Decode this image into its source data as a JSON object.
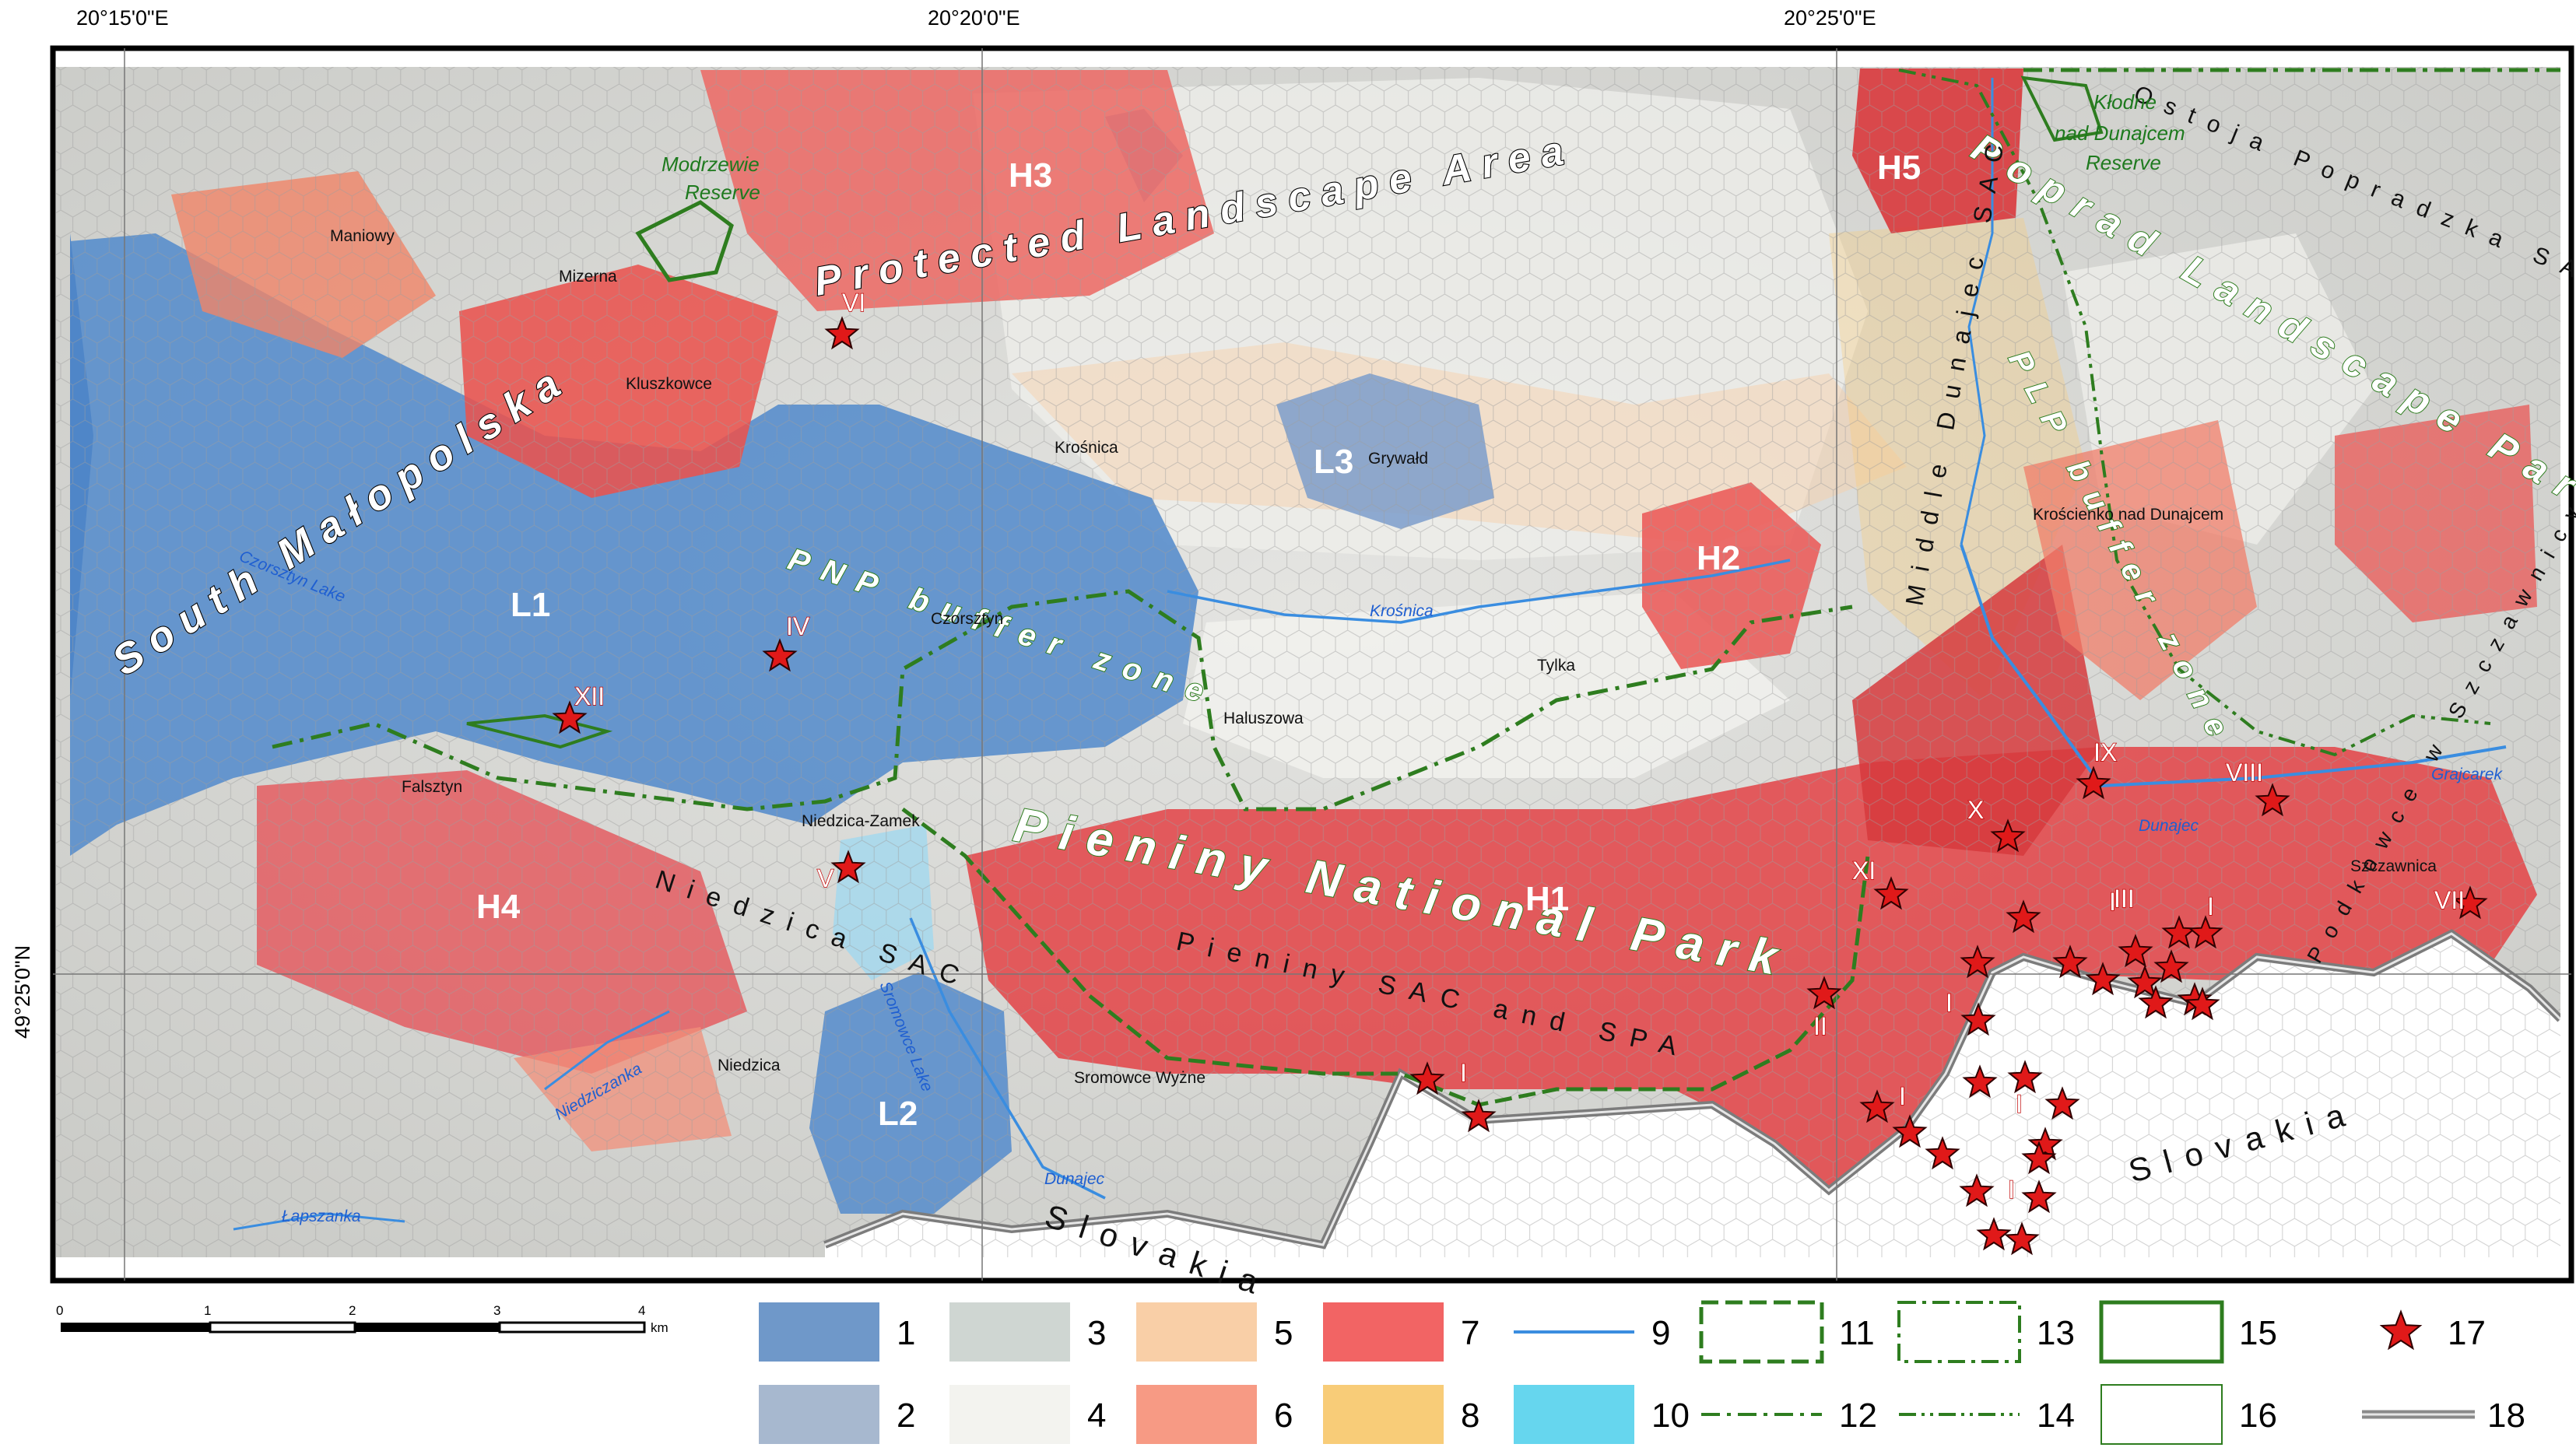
{
  "coordinates": {
    "top": [
      "20°15'0\"E",
      "20°20'0\"E",
      "20°25'0\"E"
    ],
    "left": "49°25'0\"N"
  },
  "areas": [
    {
      "id": "south-malopolska",
      "text": "South Małopolska"
    },
    {
      "id": "protected-landscape-area",
      "text": "Protected Landscape Area"
    },
    {
      "id": "pieniny-national-park",
      "text": "Pieniny National Park"
    },
    {
      "id": "poprad-landscape-park",
      "text": "Poprad Landscape Park"
    },
    {
      "id": "pieniny-sac-spa",
      "text": "Pieniny SAC and SPA"
    },
    {
      "id": "pnp-buffer-zone",
      "text": "PNP buffer zone"
    },
    {
      "id": "plp-buffer-zone",
      "text": "PLP buffer zone"
    },
    {
      "id": "niedzica-sac",
      "text": "Niedzica SAC"
    },
    {
      "id": "middle-dunajec-sac",
      "text": "Middle Dunajec SAC"
    },
    {
      "id": "ostoja-popradzka-sac",
      "text": "Ostoja Popradzka SAC"
    },
    {
      "id": "szczawnicy-sac",
      "text": "Podkowce w Szczawnicy SAC"
    }
  ],
  "slovakia": [
    "Slovakia",
    "Slovakia"
  ],
  "reserves": [
    {
      "id": "modrzewie",
      "line1": "Modrzewie",
      "line2": "Reserve"
    },
    {
      "id": "klodne",
      "line1": "Kłodne",
      "line2": "nad Dunajcem",
      "line3": "Reserve"
    }
  ],
  "towns": [
    "Maniowy",
    "Mizerna",
    "Kluszkowce",
    "Krośnica",
    "Grywałd",
    "Czorsztyn",
    "Tylka",
    "Haluszowa",
    "Falsztyn",
    "Niedzica-Zamek",
    "Niedzica",
    "Sromowce Wyżne",
    "Krościenko nad Dunajcem",
    "Szczawnica"
  ],
  "lakes": [
    "Czorsztyn Lake",
    "Sromowce Lake"
  ],
  "rivers": [
    "Krośnica",
    "Niedziczanka",
    "Łapszanka",
    "Dunajec",
    "Dunajec",
    "Grajcarek"
  ],
  "zones": [
    "H1",
    "H2",
    "H3",
    "H4",
    "H5",
    "L1",
    "L2",
    "L3"
  ],
  "sites": [
    "I",
    "I",
    "I",
    "I",
    "I",
    "I",
    "I",
    "II",
    "III",
    "IV",
    "V",
    "VI",
    "VII",
    "VIII",
    "IX",
    "X",
    "XI",
    "XII"
  ],
  "scalebar": {
    "ticks": [
      "0",
      "1",
      "2",
      "3",
      "4"
    ],
    "unit": "km"
  },
  "legend": [
    {
      "num": "1",
      "kind": "fill",
      "color": "#6f98c9"
    },
    {
      "num": "2",
      "kind": "fill",
      "color": "#a7b8cf"
    },
    {
      "num": "3",
      "kind": "fill",
      "color": "#cfd6d2"
    },
    {
      "num": "4",
      "kind": "fill",
      "color": "#f3f3ef"
    },
    {
      "num": "5",
      "kind": "fill",
      "color": "#f9cfa7"
    },
    {
      "num": "6",
      "kind": "fill",
      "color": "#f79a84"
    },
    {
      "num": "7",
      "kind": "fill",
      "color": "#f26464"
    },
    {
      "num": "8",
      "kind": "fill",
      "color": "#f8cc78"
    },
    {
      "num": "9",
      "kind": "river-line",
      "color": "#3a8de0"
    },
    {
      "num": "10",
      "kind": "fill",
      "color": "#66d6ee"
    },
    {
      "num": "11",
      "kind": "dash-box",
      "color": "#2e7d1f"
    },
    {
      "num": "12",
      "kind": "dashdot-line",
      "color": "#2e7d1f"
    },
    {
      "num": "13",
      "kind": "dashdot-box",
      "color": "#2e7d1f"
    },
    {
      "num": "14",
      "kind": "dashdotdot-line",
      "color": "#2e7d1f"
    },
    {
      "num": "15",
      "kind": "solid-box",
      "color": "#2e7d1f"
    },
    {
      "num": "16",
      "kind": "thin-box",
      "color": "#2e7d1f"
    },
    {
      "num": "17",
      "kind": "star",
      "color": "#e01919"
    },
    {
      "num": "18",
      "kind": "border-line",
      "color": "#8a8a8a"
    }
  ]
}
